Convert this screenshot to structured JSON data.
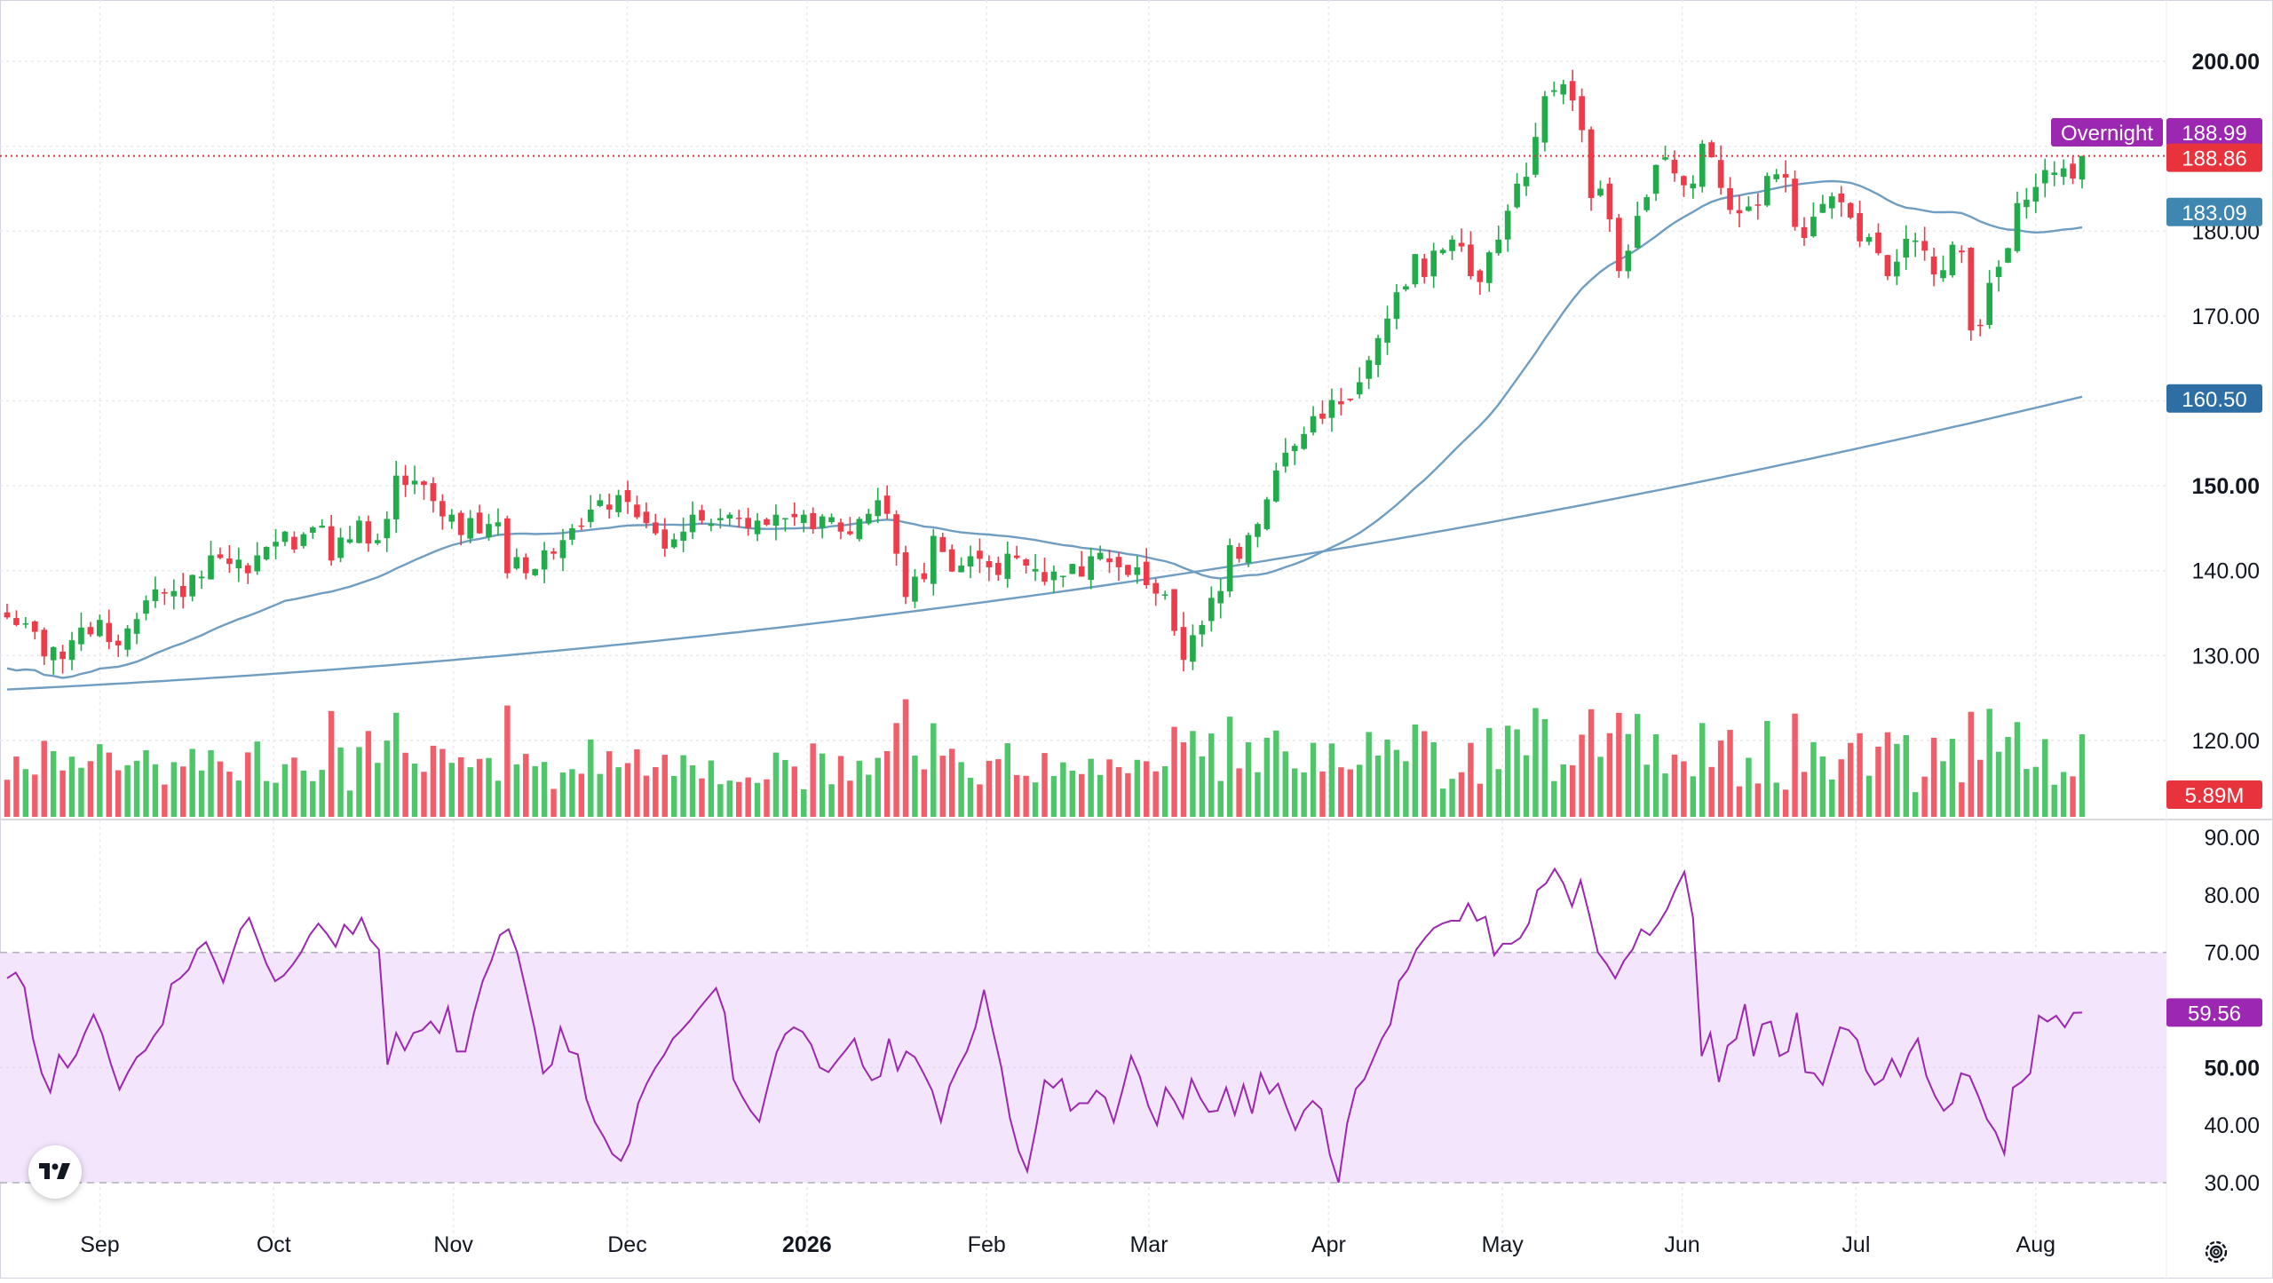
{
  "colors": {
    "up": "#22ab4a",
    "down": "#ee3b4a",
    "up_volume": "#3cc05a",
    "down_volume": "#ef4c5a",
    "ma_line": "#6f9ec2",
    "rsi_line": "#9c27b0",
    "rsi_band": "#f3e5fc",
    "grid": "#e9e9ee",
    "axis_text": "#131722",
    "price_badge": "#e8333c",
    "overnight_badge": "#9c27b0",
    "ma_badge": "#3f86b0",
    "ma_badge_2": "#2d6fa5"
  },
  "icons": {
    "logo": "tradingview-logo-icon",
    "settings": "gear-icon"
  },
  "chart_data": [
    {
      "type": "candlestick",
      "title": "",
      "x_axis_labels": [
        "Sep",
        "Oct",
        "Nov",
        "Dec",
        "2026",
        "Feb",
        "Mar",
        "Apr",
        "May",
        "Jun",
        "Jul",
        "Aug"
      ],
      "x_axis_label_positions_day": [
        16,
        46,
        77,
        107,
        138,
        169,
        197,
        228,
        258,
        289,
        319,
        350
      ],
      "x_axis_start_date": "2025-08-17",
      "price_axis": {
        "ticks": [
          "200.00",
          "180.00",
          "170.00",
          "150.00",
          "140.00",
          "130.00",
          "120.00"
        ],
        "tick_values": [
          200,
          180,
          170,
          150,
          140,
          130,
          120
        ],
        "range": [
          111,
          202
        ]
      },
      "badges": {
        "overnight_label": "Overnight",
        "overnight_value": "188.99",
        "last_price": "188.86",
        "ma_fast": "183.09",
        "ma_slow": "160.50",
        "volume": "5.89M"
      },
      "last_price": 188.86,
      "ma_fast_last": 183.09,
      "ma_slow_last": 160.5,
      "candles_closes": [
        134.5,
        133.6,
        133.8,
        132.8,
        129.9,
        131.0,
        129.6,
        131.8,
        133.3,
        132.5,
        134.2,
        131.6,
        131.2,
        133.2,
        134.3,
        136.5,
        137.8,
        137.3,
        137.6,
        136.9,
        139.5,
        139.3,
        141.8,
        141.5,
        140.8,
        141.3,
        139.7,
        141.8,
        142.8,
        143.4,
        144.6,
        142.5,
        144.3,
        145.1,
        145.3,
        141.2,
        143.9,
        143.7,
        145.9,
        143.2,
        143.6,
        146.1,
        151.2,
        150.1,
        150.6,
        150.1,
        148.2,
        146.4,
        146.6,
        144.2,
        146.2,
        144.4,
        145.5,
        145.7,
        139.7,
        141.6,
        139.7,
        140.2,
        142.4,
        142.0,
        143.6,
        145.0,
        145.2,
        147.2,
        148.3,
        147.2,
        148.9,
        148.1,
        146.3,
        145.6,
        144.4,
        142.6,
        143.7,
        144.6,
        146.6,
        145.9,
        145.5,
        146.2,
        146.6,
        146.1,
        145.0,
        145.9,
        145.4,
        146.6,
        146.2,
        146.3,
        146.6,
        144.9,
        146.4,
        146.3,
        144.6,
        144.3,
        146.1,
        146.7,
        148.3,
        146.7,
        142.0,
        136.9,
        139.3,
        139.0,
        144.1,
        142.2,
        139.9,
        140.6,
        141.7,
        141.4,
        140.4,
        139.5,
        142.0,
        141.5,
        140.6,
        140.2,
        138.7,
        139.9,
        139.4,
        140.8,
        139.3,
        141.7,
        142.1,
        141.0,
        140.4,
        139.5,
        140.4,
        138.3,
        137.3,
        137.2,
        132.9,
        129.5,
        132.4,
        133.6,
        136.8,
        137.6,
        143.0,
        141.4,
        144.2,
        145.5,
        148.4,
        151.8,
        153.9,
        154.7,
        156.1,
        158.2,
        157.9,
        160.1,
        159.6,
        160.1,
        162.2,
        164.8,
        167.4,
        169.7,
        172.8,
        173.5,
        177.3,
        174.6,
        177.7,
        177.8,
        179.0,
        178.2,
        174.7,
        174.0,
        177.5,
        179.0,
        182.4,
        185.6,
        186.4,
        191.1,
        195.9,
        196.6,
        197.3,
        195.4,
        191.9,
        183.9,
        185.0,
        181.4,
        175.3,
        177.7,
        181.8,
        184.0,
        187.8,
        188.7,
        186.8,
        185.4,
        185.6,
        190.3,
        188.7,
        185.1,
        182.5,
        182.1,
        182.9,
        183.0,
        186.5,
        186.7,
        186.3,
        180.5,
        179.2,
        181.7,
        183.2,
        184.1,
        183.4,
        181.6,
        178.8,
        179.3,
        177.4,
        174.7,
        176.4,
        179.1,
        178.9,
        177.7,
        174.9,
        175.4,
        178.4,
        177.5,
        168.3,
        168.9,
        173.9,
        175.8,
        178.0,
        183.3,
        183.7,
        185.2,
        187.2,
        186.9,
        187.4,
        186.2,
        188.86
      ],
      "volume_range": [
        0,
        31
      ],
      "ma_fast_series": "50-day simple moving average",
      "ma_slow_series": "200-day simple moving average"
    },
    {
      "type": "line",
      "title": "",
      "series": [
        {
          "name": "",
          "values": [
            65.5,
            66.5,
            64.0,
            55.0,
            49.0,
            45.7,
            52.2,
            50.0,
            52.2,
            56.0,
            59.2,
            55.8,
            50.6,
            46.2,
            49.2,
            51.8,
            53.0,
            55.5,
            57.5,
            64.5,
            65.5,
            67.0,
            70.5,
            71.8,
            68.5,
            64.8,
            69.5,
            74.0,
            76.0,
            72.0,
            68.0,
            65.0,
            66.0,
            67.8,
            70.0,
            73.0,
            75.0,
            73.2,
            71.0,
            74.8,
            73.2,
            76.0,
            72.2,
            70.5,
            50.5,
            56.0,
            53.0,
            56.0,
            56.5,
            58.0,
            56.0,
            60.5,
            52.8,
            52.8,
            59.5,
            65.0,
            68.5,
            73.0,
            74.0,
            70.0,
            63.5,
            56.8,
            49.0,
            50.5,
            57.0,
            52.8,
            52.3,
            44.5,
            40.5,
            38.0,
            35.0,
            33.8,
            36.8,
            43.8,
            47.3,
            50.0,
            52.2,
            55.0,
            56.5,
            58.2,
            60.2,
            62.0,
            63.8,
            59.5,
            48.0,
            45.0,
            42.5,
            40.6,
            46.8,
            52.6,
            55.8,
            57.0,
            56.2,
            54.0,
            50.0,
            49.2,
            51.2,
            53.0,
            55.0,
            50.2,
            47.8,
            48.5,
            55.0,
            49.5,
            52.8,
            51.8,
            49.0,
            46.0,
            40.6,
            46.8,
            50.0,
            52.8,
            57.0,
            63.5,
            56.5,
            50.0,
            41.2,
            35.5,
            32.0,
            39.5,
            47.8,
            46.5,
            48.0,
            42.5,
            43.8,
            43.8,
            46.0,
            44.8,
            40.5,
            46.0,
            52.0,
            48.5,
            43.3,
            40.0,
            46.5,
            44.2,
            41.3,
            48.0,
            44.7,
            42.3,
            42.5,
            46.5,
            41.8,
            47.0,
            42.0,
            49.0,
            45.5,
            47.2,
            43.0,
            39.2,
            42.5,
            44.2,
            42.8,
            34.8,
            30.0,
            40.3,
            46.3,
            48.0,
            51.5,
            55.0,
            57.5,
            65.0,
            67.0,
            70.5,
            72.5,
            74.2,
            75.0,
            75.5,
            75.5,
            78.5,
            75.5,
            76.2,
            69.5,
            71.5,
            71.5,
            72.5,
            75.0,
            80.8,
            82.0,
            84.5,
            82.0,
            78.0,
            82.5,
            76.5,
            70.0,
            68.0,
            65.5,
            68.5,
            70.5,
            74.0,
            73.0,
            75.0,
            77.5,
            81.0,
            84.0,
            76.0,
            52.0,
            56.0,
            47.5,
            53.8,
            55.0,
            61.0,
            52.0,
            57.5,
            58.0,
            52.0,
            52.8,
            59.5,
            49.2,
            49.0,
            47.0,
            52.0,
            57.0,
            56.5,
            54.8,
            49.5,
            47.0,
            48.0,
            51.5,
            48.5,
            52.5,
            55.0,
            48.5,
            45.0,
            42.5,
            43.8,
            49.0,
            48.5,
            45.0,
            41.0,
            38.8,
            35.0,
            46.5,
            47.5,
            49.0,
            59.0,
            58.0,
            59.0,
            57.0,
            59.5,
            59.56
          ]
        }
      ],
      "y_axis": {
        "ticks": [
          "90.00",
          "80.00",
          "70.00",
          "50.00",
          "40.00",
          "30.00"
        ],
        "tick_values": [
          90,
          80,
          70,
          50,
          40,
          30
        ],
        "range": [
          28,
          92
        ]
      },
      "band": [
        30,
        70
      ],
      "last_value": "59.56"
    }
  ]
}
